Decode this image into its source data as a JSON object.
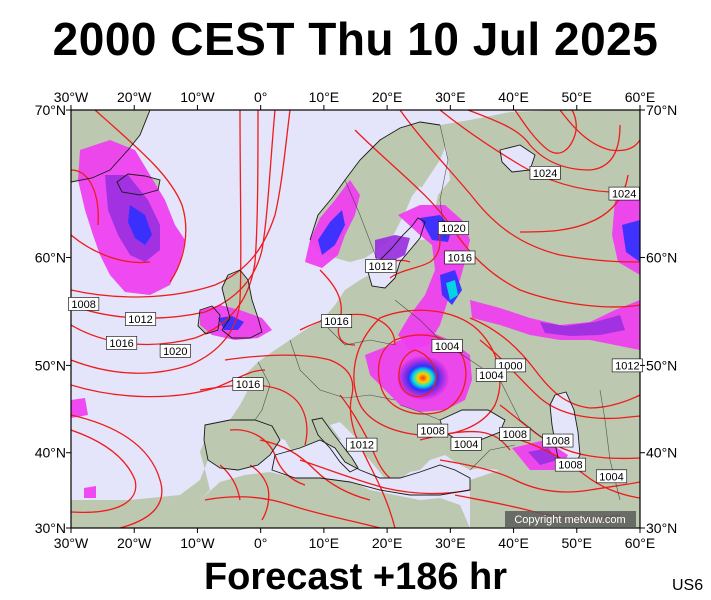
{
  "title": "2000 CEST Thu 10 Jul 2025",
  "footer": "Forecast +186 hr",
  "model_code": "US6",
  "copyright": "Copyright metvuw.com",
  "axes": {
    "lon_labels": [
      "30°W",
      "20°W",
      "10°W",
      "0°",
      "10°E",
      "20°E",
      "30°E",
      "40°E",
      "50°E",
      "60°E"
    ],
    "lat_labels": [
      "70°N",
      "60°N",
      "50°N",
      "40°N",
      "30°N"
    ]
  },
  "colors": {
    "ocean": "#e4e4fa",
    "land": "#bcc9b0",
    "isobar": "#ee1c1c",
    "precip_light": "#f03cf0",
    "precip_mid": "#9a30e0",
    "precip_heavy": "#3030ff",
    "precip_extreme": "#00e0e0"
  },
  "isobar_labels": [
    {
      "text": "1024",
      "lon": 45,
      "lat": 66.2
    },
    {
      "text": "1024",
      "lon": 57.5,
      "lat": 64.8
    },
    {
      "text": "1020",
      "lon": 30.5,
      "lat": 62.3
    },
    {
      "text": "1016",
      "lon": 31.5,
      "lat": 60.0
    },
    {
      "text": "1012",
      "lon": 19,
      "lat": 59.3
    },
    {
      "text": "1016",
      "lon": 12,
      "lat": 54.4
    },
    {
      "text": "1004",
      "lon": 29.5,
      "lat": 52.0
    },
    {
      "text": "1000",
      "lon": 39.5,
      "lat": 50.0
    },
    {
      "text": "1004",
      "lon": 36.5,
      "lat": 49.0
    },
    {
      "text": "1012",
      "lon": 58,
      "lat": 50.0
    },
    {
      "text": "1008",
      "lon": -28,
      "lat": 56.0
    },
    {
      "text": "1012",
      "lon": -19,
      "lat": 54.6
    },
    {
      "text": "1016",
      "lon": -22,
      "lat": 52.3
    },
    {
      "text": "1020",
      "lon": -13.5,
      "lat": 51.5
    },
    {
      "text": "1016",
      "lon": -2,
      "lat": 48.0
    },
    {
      "text": "1008",
      "lon": 27.2,
      "lat": 42.7
    },
    {
      "text": "1012",
      "lon": 16,
      "lat": 41.0
    },
    {
      "text": "1004",
      "lon": 32.5,
      "lat": 41.1
    },
    {
      "text": "1008",
      "lon": 40.2,
      "lat": 42.3
    },
    {
      "text": "1008",
      "lon": 47,
      "lat": 41.5
    },
    {
      "text": "1008",
      "lon": 49,
      "lat": 38.5
    },
    {
      "text": "1004",
      "lon": 55.5,
      "lat": 37.0
    }
  ]
}
